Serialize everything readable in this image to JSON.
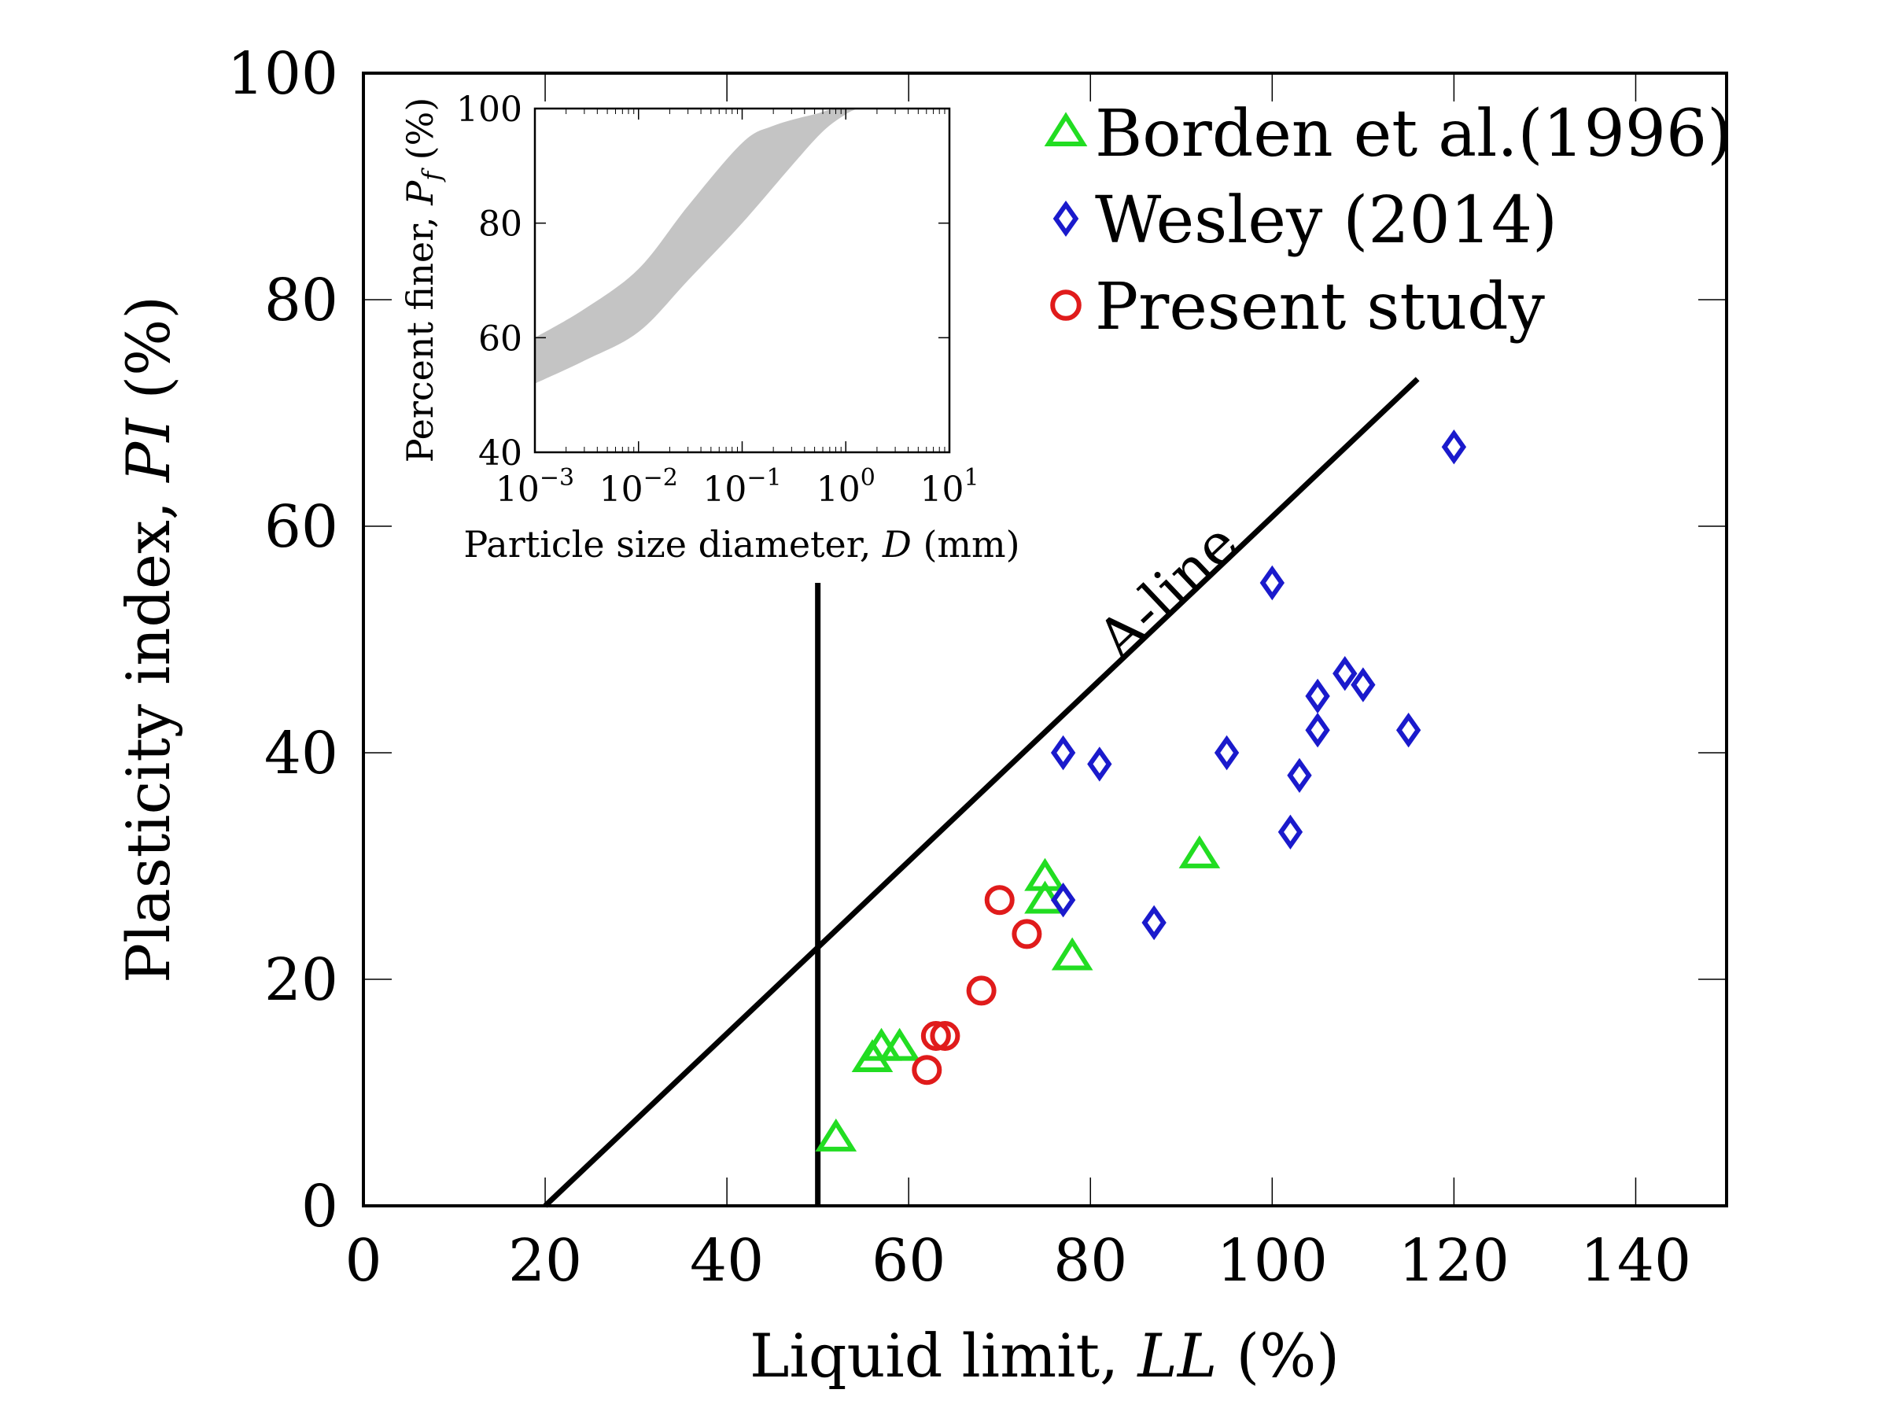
{
  "chart_data": [
    {
      "type": "scatter",
      "title": "",
      "xlabel": "Liquid limit, ",
      "xlabel_var": "LL",
      "xlabel_unit": " (%)",
      "ylabel": "Plasticity index, ",
      "ylabel_var": "PI",
      "ylabel_unit": " (%)",
      "xlim": [
        0,
        150
      ],
      "ylim": [
        0,
        100
      ],
      "x_ticks": [
        0,
        20,
        40,
        60,
        80,
        100,
        120,
        140
      ],
      "y_ticks": [
        0,
        20,
        40,
        60,
        80,
        100
      ],
      "grid": false,
      "legend_position": "top-right",
      "series": [
        {
          "name": "Borden et al.(1996)",
          "marker": "triangle",
          "color": "#22dd22",
          "points": [
            [
              52,
              6
            ],
            [
              56,
              13
            ],
            [
              57,
              14
            ],
            [
              59,
              14
            ],
            [
              75,
              29
            ],
            [
              75,
              27
            ],
            [
              78,
              22
            ],
            [
              92,
              31
            ]
          ]
        },
        {
          "name": "Wesley (2014)",
          "marker": "diamond",
          "color": "#1a1acc",
          "points": [
            [
              77,
              40
            ],
            [
              81,
              39
            ],
            [
              77,
              27
            ],
            [
              87,
              25
            ],
            [
              95,
              40
            ],
            [
              100,
              55
            ],
            [
              102,
              33
            ],
            [
              103,
              38
            ],
            [
              105,
              45
            ],
            [
              105,
              42
            ],
            [
              108,
              47
            ],
            [
              110,
              46
            ],
            [
              115,
              42
            ],
            [
              120,
              67
            ]
          ]
        },
        {
          "name": "Present study",
          "marker": "circle",
          "color": "#e01b1b",
          "points": [
            [
              62,
              12
            ],
            [
              63,
              15
            ],
            [
              64,
              15
            ],
            [
              68,
              19
            ],
            [
              70,
              27
            ],
            [
              73,
              24
            ]
          ]
        }
      ],
      "lines": [
        {
          "label": "A-line",
          "points": [
            [
              20,
              0
            ],
            [
              116,
              73
            ]
          ]
        },
        {
          "label": "",
          "points": [
            [
              50,
              0
            ],
            [
              50,
              55
            ]
          ]
        }
      ],
      "annotation": "A-line"
    },
    {
      "type": "area",
      "title": "",
      "xlabel": "Particle size diameter, ",
      "xlabel_var": "D",
      "xlabel_unit": " (mm)",
      "ylabel": "Percent finer, ",
      "ylabel_var": "P",
      "ylabel_sub": "f",
      "ylabel_unit": " (%)",
      "x_scale": "log",
      "xlim": [
        0.001,
        10
      ],
      "ylim": [
        40,
        100
      ],
      "x_ticks": [
        -3,
        -2,
        -1,
        0,
        1
      ],
      "y_ticks": [
        40,
        60,
        80,
        100
      ],
      "band_color": "#c4c4c4",
      "band_upper": [
        [
          0.001,
          60
        ],
        [
          0.003,
          65
        ],
        [
          0.01,
          72
        ],
        [
          0.03,
          83
        ],
        [
          0.1,
          94
        ],
        [
          0.2,
          97
        ],
        [
          0.5,
          99
        ],
        [
          1,
          100
        ],
        [
          10,
          100
        ]
      ],
      "band_lower": [
        [
          0.001,
          52
        ],
        [
          0.003,
          56
        ],
        [
          0.01,
          61
        ],
        [
          0.03,
          70
        ],
        [
          0.1,
          80
        ],
        [
          0.3,
          90
        ],
        [
          0.6,
          96
        ],
        [
          1,
          99
        ],
        [
          1.3,
          100
        ]
      ]
    }
  ]
}
